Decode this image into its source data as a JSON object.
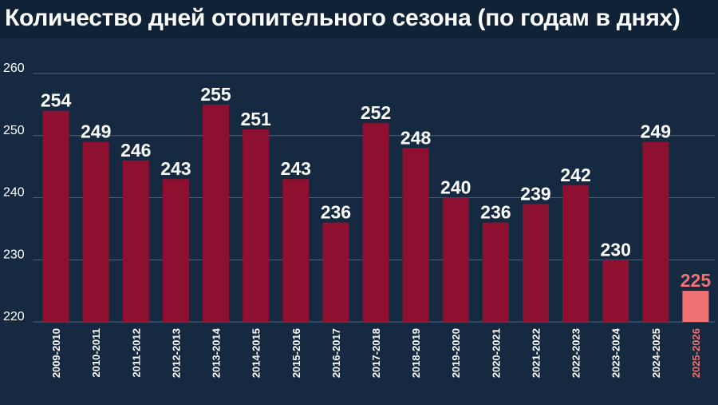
{
  "title": "Количество дней отопительного сезона (по годам в днях)",
  "colors": {
    "background": "#152a41",
    "bar": "#8e1030",
    "highlight_bar": "#f07272",
    "highlight_label": "#f07272",
    "grid": "#4f6478",
    "text": "#ffffff"
  },
  "chart_data": {
    "type": "bar",
    "title": "Количество дней отопительного сезона (по годам в днях)",
    "xlabel": "",
    "ylabel": "",
    "ylim": [
      220,
      260
    ],
    "yticks": [
      220,
      230,
      240,
      250,
      260
    ],
    "grid": true,
    "categories": [
      "2009-2010",
      "2010-2011",
      "2011-2012",
      "2012-2013",
      "2013-2014",
      "2014-2015",
      "2015-2016",
      "2016-2017",
      "2017-2018",
      "2018-2019",
      "2019-2020",
      "2020-2021",
      "2021-2022",
      "2022-2023",
      "2023-2024",
      "2024-2025",
      "2025-2026"
    ],
    "values": [
      254,
      249,
      246,
      243,
      255,
      251,
      243,
      236,
      252,
      248,
      240,
      236,
      239,
      242,
      230,
      249,
      225
    ],
    "highlight_index": 16
  }
}
